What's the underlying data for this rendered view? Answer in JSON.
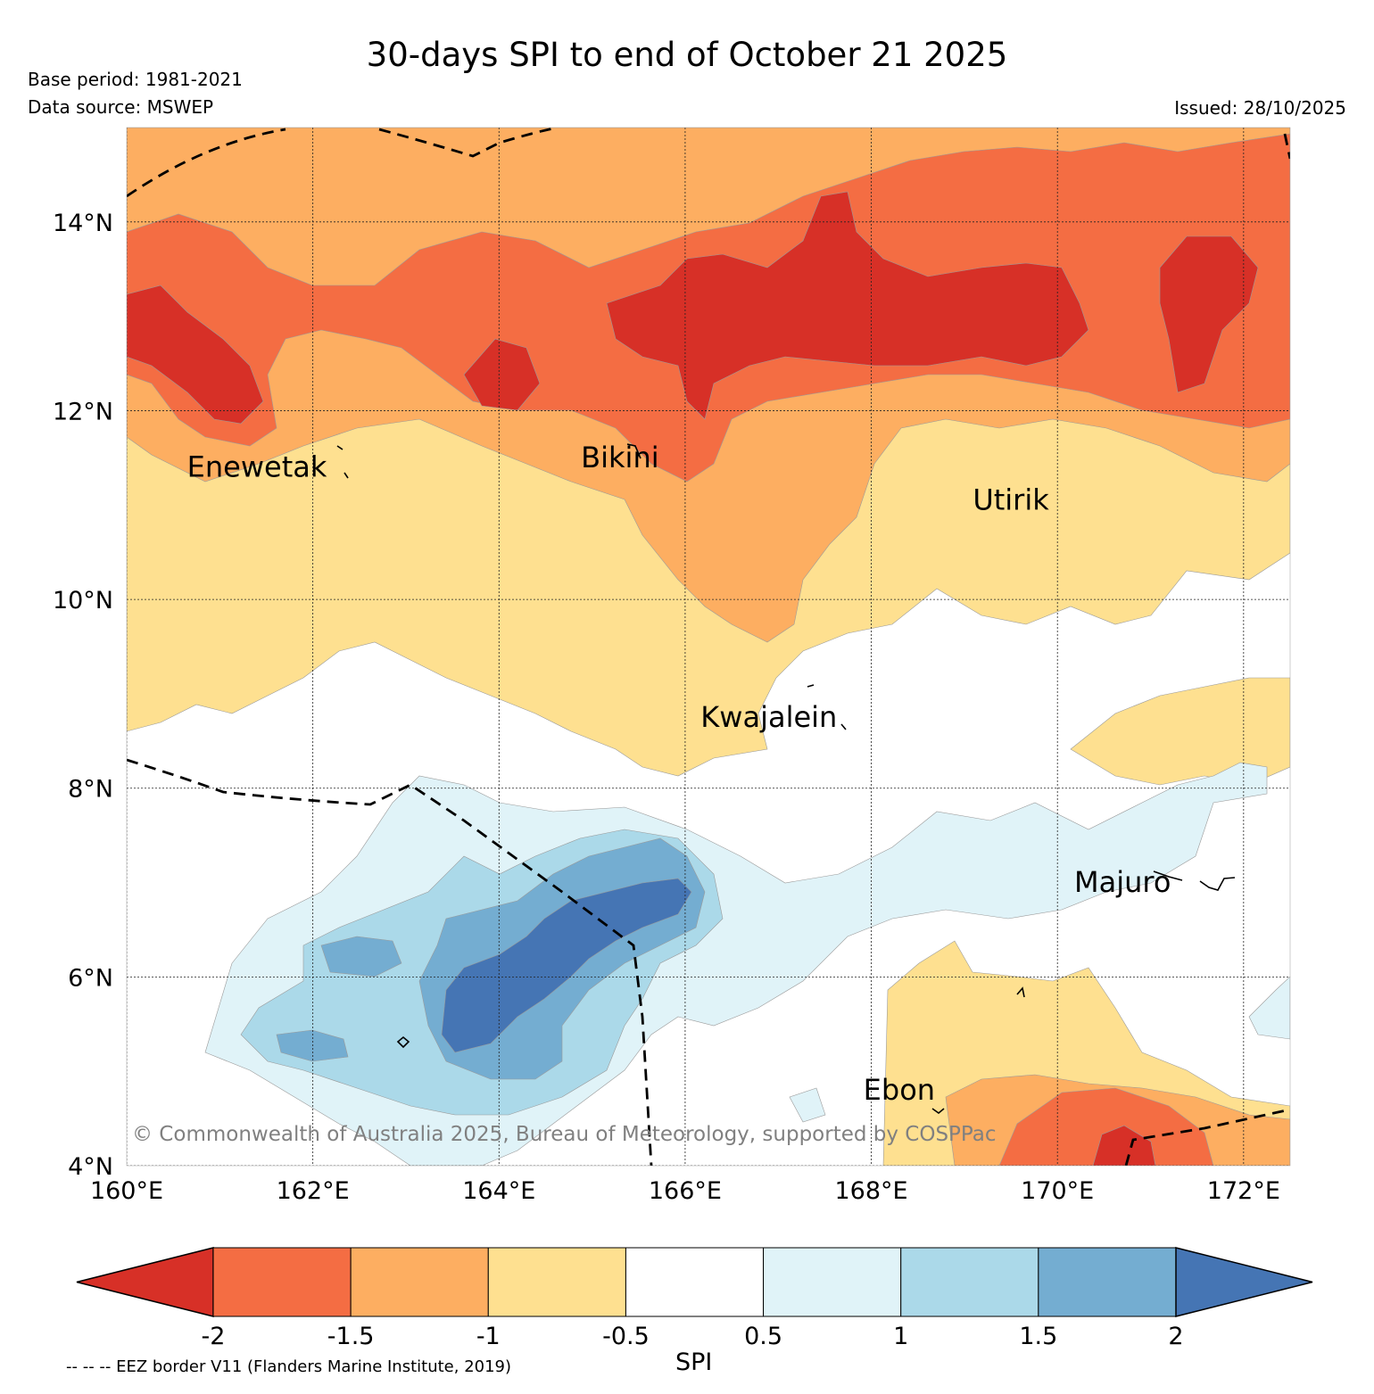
{
  "title": "30-days SPI to end of October 21 2025",
  "base_period": "Base period: 1981-2021",
  "data_source": "Data source: MSWEP",
  "issued": "Issued: 28/10/2025",
  "copyright": "© Commonwealth of Australia 2025, Bureau of Meteorology, supported by COSPPac",
  "map": {
    "lon_range": [
      160,
      172.5
    ],
    "lat_range": [
      4,
      15
    ],
    "lat_ticks": [
      {
        "value": 14,
        "label": "14°N"
      },
      {
        "value": 12,
        "label": "12°N"
      },
      {
        "value": 10,
        "label": "10°N"
      },
      {
        "value": 8,
        "label": "8°N"
      },
      {
        "value": 6,
        "label": "6°N"
      },
      {
        "value": 4,
        "label": "4°N"
      }
    ],
    "lon_ticks": [
      {
        "value": 160,
        "label": "160°E"
      },
      {
        "value": 162,
        "label": "162°E"
      },
      {
        "value": 164,
        "label": "164°E"
      },
      {
        "value": 166,
        "label": "166°E"
      },
      {
        "value": 168,
        "label": "168°E"
      },
      {
        "value": 170,
        "label": "170°E"
      },
      {
        "value": 172,
        "label": "172°E"
      }
    ],
    "places": [
      {
        "name": "Enewetak",
        "lon": 161.4,
        "lat": 11.3
      },
      {
        "name": "Bikini",
        "lon": 165.3,
        "lat": 11.4
      },
      {
        "name": "Utirik",
        "lon": 169.5,
        "lat": 10.95
      },
      {
        "name": "Kwajalein",
        "lon": 166.9,
        "lat": 8.65
      },
      {
        "name": "Majuro",
        "lon": 170.7,
        "lat": 6.9
      },
      {
        "name": "Ebon",
        "lon": 168.3,
        "lat": 4.7
      }
    ]
  },
  "colorbar": {
    "label": "SPI",
    "bins": [
      {
        "range": "< -2",
        "color": "#d73027"
      },
      {
        "range": "-2 to -1.5",
        "color": "#f46d43"
      },
      {
        "range": "-1.5 to -1",
        "color": "#fdae61"
      },
      {
        "range": "-1 to -0.5",
        "color": "#fee090"
      },
      {
        "range": "-0.5 to 0.5",
        "color": "#ffffff"
      },
      {
        "range": "0.5 to 1",
        "color": "#e0f3f8"
      },
      {
        "range": "1 to 1.5",
        "color": "#abd9e9"
      },
      {
        "range": "1.5 to 2",
        "color": "#74add1"
      },
      {
        "range": "> 2",
        "color": "#4575b4"
      }
    ],
    "ticks": [
      "-2",
      "-1.5",
      "-1",
      "-0.5",
      "0.5",
      "1",
      "1.5",
      "2"
    ]
  },
  "eez_note": "-- -- -- EEZ border V11 (Flanders Marine Institute, 2019)"
}
